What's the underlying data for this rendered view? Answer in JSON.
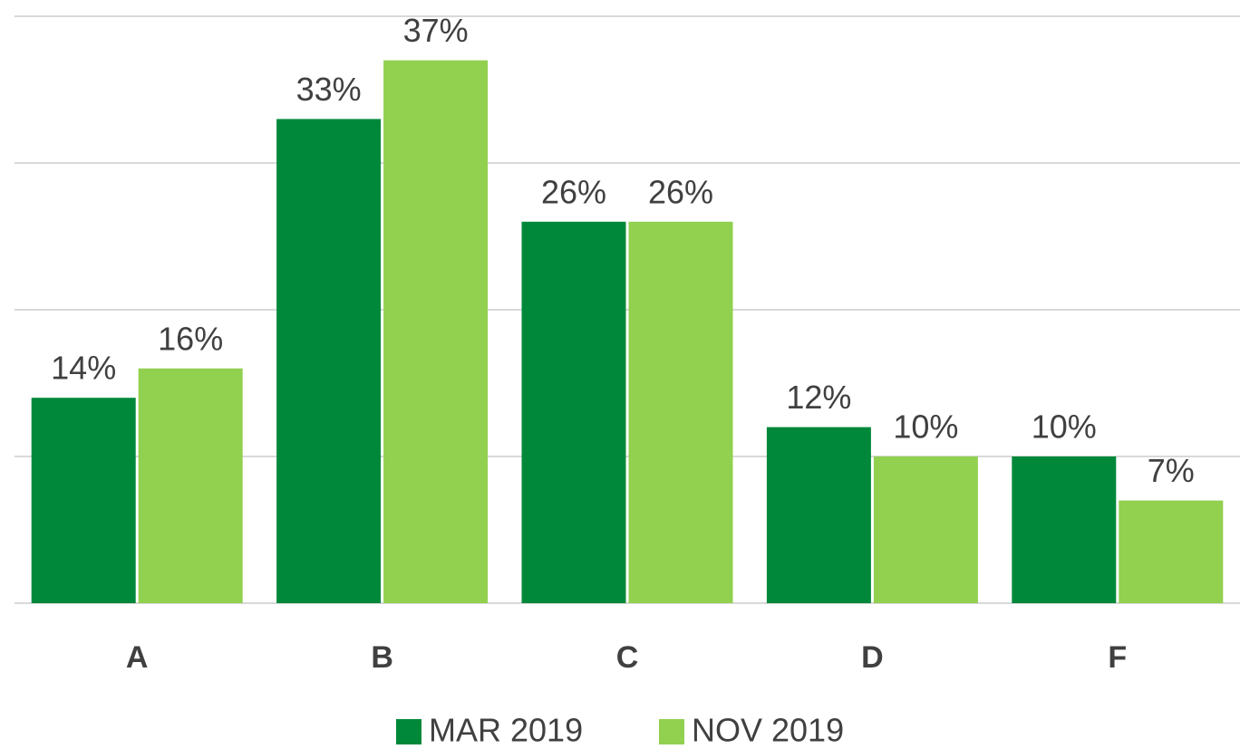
{
  "chart_data": {
    "type": "bar",
    "categories": [
      "A",
      "B",
      "C",
      "D",
      "F"
    ],
    "series": [
      {
        "name": "MAR 2019",
        "color": "#00883a",
        "values": [
          14,
          33,
          26,
          12,
          10
        ],
        "value_labels": [
          "14%",
          "33%",
          "26%",
          "12%",
          "10%"
        ]
      },
      {
        "name": "NOV 2019",
        "color": "#92d050",
        "values": [
          16,
          37,
          26,
          10,
          7
        ],
        "value_labels": [
          "16%",
          "37%",
          "26%",
          "10%",
          "7%"
        ]
      }
    ],
    "ylim": [
      0,
      40
    ],
    "yticks": [
      0,
      10,
      20,
      30,
      40
    ],
    "grid": true,
    "legend": "bottom"
  }
}
